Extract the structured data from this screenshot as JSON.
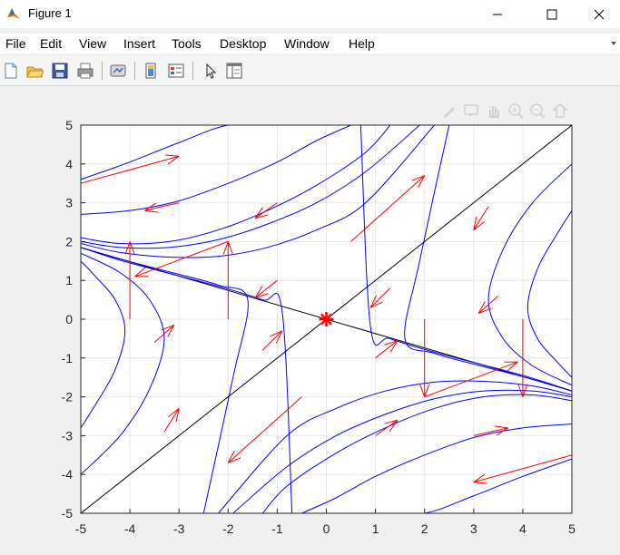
{
  "window": {
    "title": "Figure 1"
  },
  "menu": [
    "File",
    "Edit",
    "View",
    "Insert",
    "Tools",
    "Desktop",
    "Window",
    "Help"
  ],
  "toolbar": {
    "icons": [
      "new-figure-icon",
      "open-file-icon",
      "save-icon",
      "print-icon",
      "link-plot-icon",
      "insert-colorbar-icon",
      "insert-legend-icon",
      "edit-plot-icon",
      "property-inspector-icon"
    ]
  },
  "axes_toolbar": [
    "brush-icon",
    "data-tips-icon",
    "pan-icon",
    "zoom-in-icon",
    "zoom-out-icon",
    "restore-view-icon"
  ],
  "chart_data": {
    "type": "line",
    "title": "",
    "xlabel": "",
    "ylabel": "",
    "xlim": [
      -5,
      5
    ],
    "ylim": [
      -5,
      5
    ],
    "xticks": [
      "-5",
      "-4",
      "-3",
      "-2",
      "-1",
      "0",
      "1",
      "2",
      "3",
      "4",
      "5"
    ],
    "yticks": [
      "-5",
      "-4",
      "-3",
      "-2",
      "-1",
      "0",
      "1",
      "2",
      "3",
      "4",
      "5"
    ],
    "grid": true,
    "colors": {
      "trajectory": "#0000ff",
      "eigenline": "#000000",
      "arrow": "#ff0000",
      "marker": "#ff0000"
    },
    "equilibrium": {
      "x": 0,
      "y": 0,
      "marker": "*"
    },
    "eigenlines": [
      {
        "x": [
          -5,
          5
        ],
        "y": [
          -5,
          5
        ]
      },
      {
        "x": [
          -5,
          5
        ],
        "y": [
          1.85,
          -1.85
        ]
      }
    ],
    "trajectories": [
      {
        "x": [
          -5,
          -4,
          -3,
          -2,
          -1,
          0
        ],
        "y": [
          3.6,
          4.05,
          4.55,
          5.0,
          5.0,
          5.0
        ]
      },
      {
        "x": [
          -5,
          -4,
          -3,
          -2,
          -1,
          -0.2,
          0.5
        ],
        "y": [
          2.7,
          2.8,
          3.05,
          3.5,
          4.05,
          4.6,
          5.0
        ]
      },
      {
        "x": [
          -5,
          -4.2,
          -3.2,
          -2.2,
          -1.2,
          -0.2,
          0.8,
          1.3
        ],
        "y": [
          2.1,
          1.95,
          2.0,
          2.3,
          2.8,
          3.45,
          4.3,
          5.0
        ]
      },
      {
        "x": [
          -5,
          -4.2,
          -3.2,
          -2.2,
          -1.2,
          -0.2,
          0.8,
          1.9
        ],
        "y": [
          2.0,
          1.85,
          1.85,
          2.05,
          2.45,
          3.0,
          3.8,
          5.0
        ]
      },
      {
        "x": [
          -5,
          -4.2,
          -3.2,
          -2.2,
          -1.2,
          -0.2,
          0.8,
          2.2
        ],
        "y": [
          1.95,
          1.72,
          1.6,
          1.62,
          1.85,
          2.3,
          3.0,
          5.0
        ]
      },
      {
        "x": [
          -5,
          -4.2,
          -3.2,
          -2.2,
          -1.3,
          -0.9,
          -0.7
        ],
        "y": [
          1.85,
          1.52,
          1.18,
          0.85,
          0.5,
          0.2,
          -5.0
        ]
      },
      {
        "x": [
          -5,
          -4.2,
          -3.2,
          -2.2,
          -1.6,
          -1.9,
          -2.5
        ],
        "y": [
          1.85,
          1.55,
          1.22,
          0.88,
          0.5,
          -1.5,
          -5.0
        ]
      },
      {
        "x": [
          -5,
          -4.2,
          -3.6,
          -3.3,
          -3.6,
          -4.2,
          -5
        ],
        "y": [
          1.7,
          1.2,
          0.5,
          -0.5,
          -1.8,
          -3.0,
          -4.0
        ]
      },
      {
        "x": [
          -5,
          -4.7,
          -4.3,
          -4.1,
          -4.3,
          -4.7,
          -5
        ],
        "y": [
          1.5,
          1.1,
          0.5,
          -0.3,
          -1.3,
          -2.2,
          -2.8
        ]
      },
      {
        "x": [
          5,
          4,
          3,
          2,
          1,
          0
        ],
        "y": [
          -3.6,
          -4.05,
          -4.55,
          -5.0,
          -5.0,
          -5.0
        ]
      },
      {
        "x": [
          5,
          4,
          3,
          2,
          1,
          0.2,
          -0.5
        ],
        "y": [
          -2.7,
          -2.8,
          -3.05,
          -3.5,
          -4.05,
          -4.6,
          -5.0
        ]
      },
      {
        "x": [
          5,
          4.2,
          3.2,
          2.2,
          1.2,
          0.2,
          -0.8,
          -1.3
        ],
        "y": [
          -2.1,
          -1.95,
          -2.0,
          -2.3,
          -2.8,
          -3.45,
          -4.3,
          -5.0
        ]
      },
      {
        "x": [
          5,
          4.2,
          3.2,
          2.2,
          1.2,
          0.2,
          -0.8,
          -1.9
        ],
        "y": [
          -2.0,
          -1.85,
          -1.85,
          -2.05,
          -2.45,
          -3.0,
          -3.8,
          -5.0
        ]
      },
      {
        "x": [
          5,
          4.2,
          3.2,
          2.2,
          1.2,
          0.2,
          -0.8,
          -2.2
        ],
        "y": [
          -1.95,
          -1.72,
          -1.6,
          -1.62,
          -1.85,
          -2.3,
          -3.0,
          -5.0
        ]
      },
      {
        "x": [
          5,
          4.2,
          3.2,
          2.2,
          1.3,
          0.9,
          0.7
        ],
        "y": [
          -1.85,
          -1.52,
          -1.18,
          -0.85,
          -0.5,
          -0.2,
          5.0
        ]
      },
      {
        "x": [
          5,
          4.2,
          3.2,
          2.2,
          1.6,
          1.9,
          2.5
        ],
        "y": [
          -1.85,
          -1.55,
          -1.22,
          -0.88,
          -0.5,
          1.5,
          5.0
        ]
      },
      {
        "x": [
          5,
          4.2,
          3.6,
          3.3,
          3.6,
          4.2,
          5
        ],
        "y": [
          -1.7,
          -1.2,
          -0.5,
          0.5,
          1.8,
          3.0,
          4.0
        ]
      },
      {
        "x": [
          5,
          4.7,
          4.3,
          4.1,
          4.3,
          4.7,
          5
        ],
        "y": [
          -1.5,
          -1.1,
          -0.5,
          0.3,
          1.3,
          2.2,
          2.8
        ]
      }
    ],
    "arrows": [
      {
        "x": [
          -5,
          -3
        ],
        "y": [
          3.5,
          4.2
        ]
      },
      {
        "x": [
          -3,
          -3.7
        ],
        "y": [
          3.0,
          2.8
        ]
      },
      {
        "x": [
          -2,
          -3.9
        ],
        "y": [
          2.0,
          1.1
        ]
      },
      {
        "x": [
          -4,
          -4
        ],
        "y": [
          0,
          2.0
        ]
      },
      {
        "x": [
          -2,
          -2
        ],
        "y": [
          0,
          2.0
        ]
      },
      {
        "x": [
          -1,
          -1.45
        ],
        "y": [
          3.0,
          2.6
        ]
      },
      {
        "x": [
          -1,
          -1.45
        ],
        "y": [
          1.0,
          0.55
        ]
      },
      {
        "x": [
          0.5,
          2.0
        ],
        "y": [
          2.0,
          3.7
        ]
      },
      {
        "x": [
          1.3,
          0.9
        ],
        "y": [
          0.8,
          0.3
        ]
      },
      {
        "x": [
          3.3,
          3.0
        ],
        "y": [
          2.9,
          2.3
        ]
      },
      {
        "x": [
          3.5,
          3.1
        ],
        "y": [
          0.6,
          0.15
        ]
      },
      {
        "x": [
          5,
          3
        ],
        "y": [
          -3.5,
          -4.2
        ]
      },
      {
        "x": [
          3,
          3.7
        ],
        "y": [
          -3.0,
          -2.8
        ]
      },
      {
        "x": [
          2,
          3.9
        ],
        "y": [
          -2.0,
          -1.1
        ]
      },
      {
        "x": [
          4,
          4
        ],
        "y": [
          0,
          -2.0
        ]
      },
      {
        "x": [
          2,
          2
        ],
        "y": [
          0,
          -2.0
        ]
      },
      {
        "x": [
          1,
          1.45
        ],
        "y": [
          -3.0,
          -2.6
        ]
      },
      {
        "x": [
          1,
          1.45
        ],
        "y": [
          -1.0,
          -0.55
        ]
      },
      {
        "x": [
          -0.5,
          -2.0
        ],
        "y": [
          -2.0,
          -3.7
        ]
      },
      {
        "x": [
          -1.3,
          -0.9
        ],
        "y": [
          -0.8,
          -0.3
        ]
      },
      {
        "x": [
          -3.3,
          -3.0
        ],
        "y": [
          -2.9,
          -2.3
        ]
      },
      {
        "x": [
          -3.5,
          -3.1
        ],
        "y": [
          -0.6,
          -0.15
        ]
      }
    ]
  }
}
